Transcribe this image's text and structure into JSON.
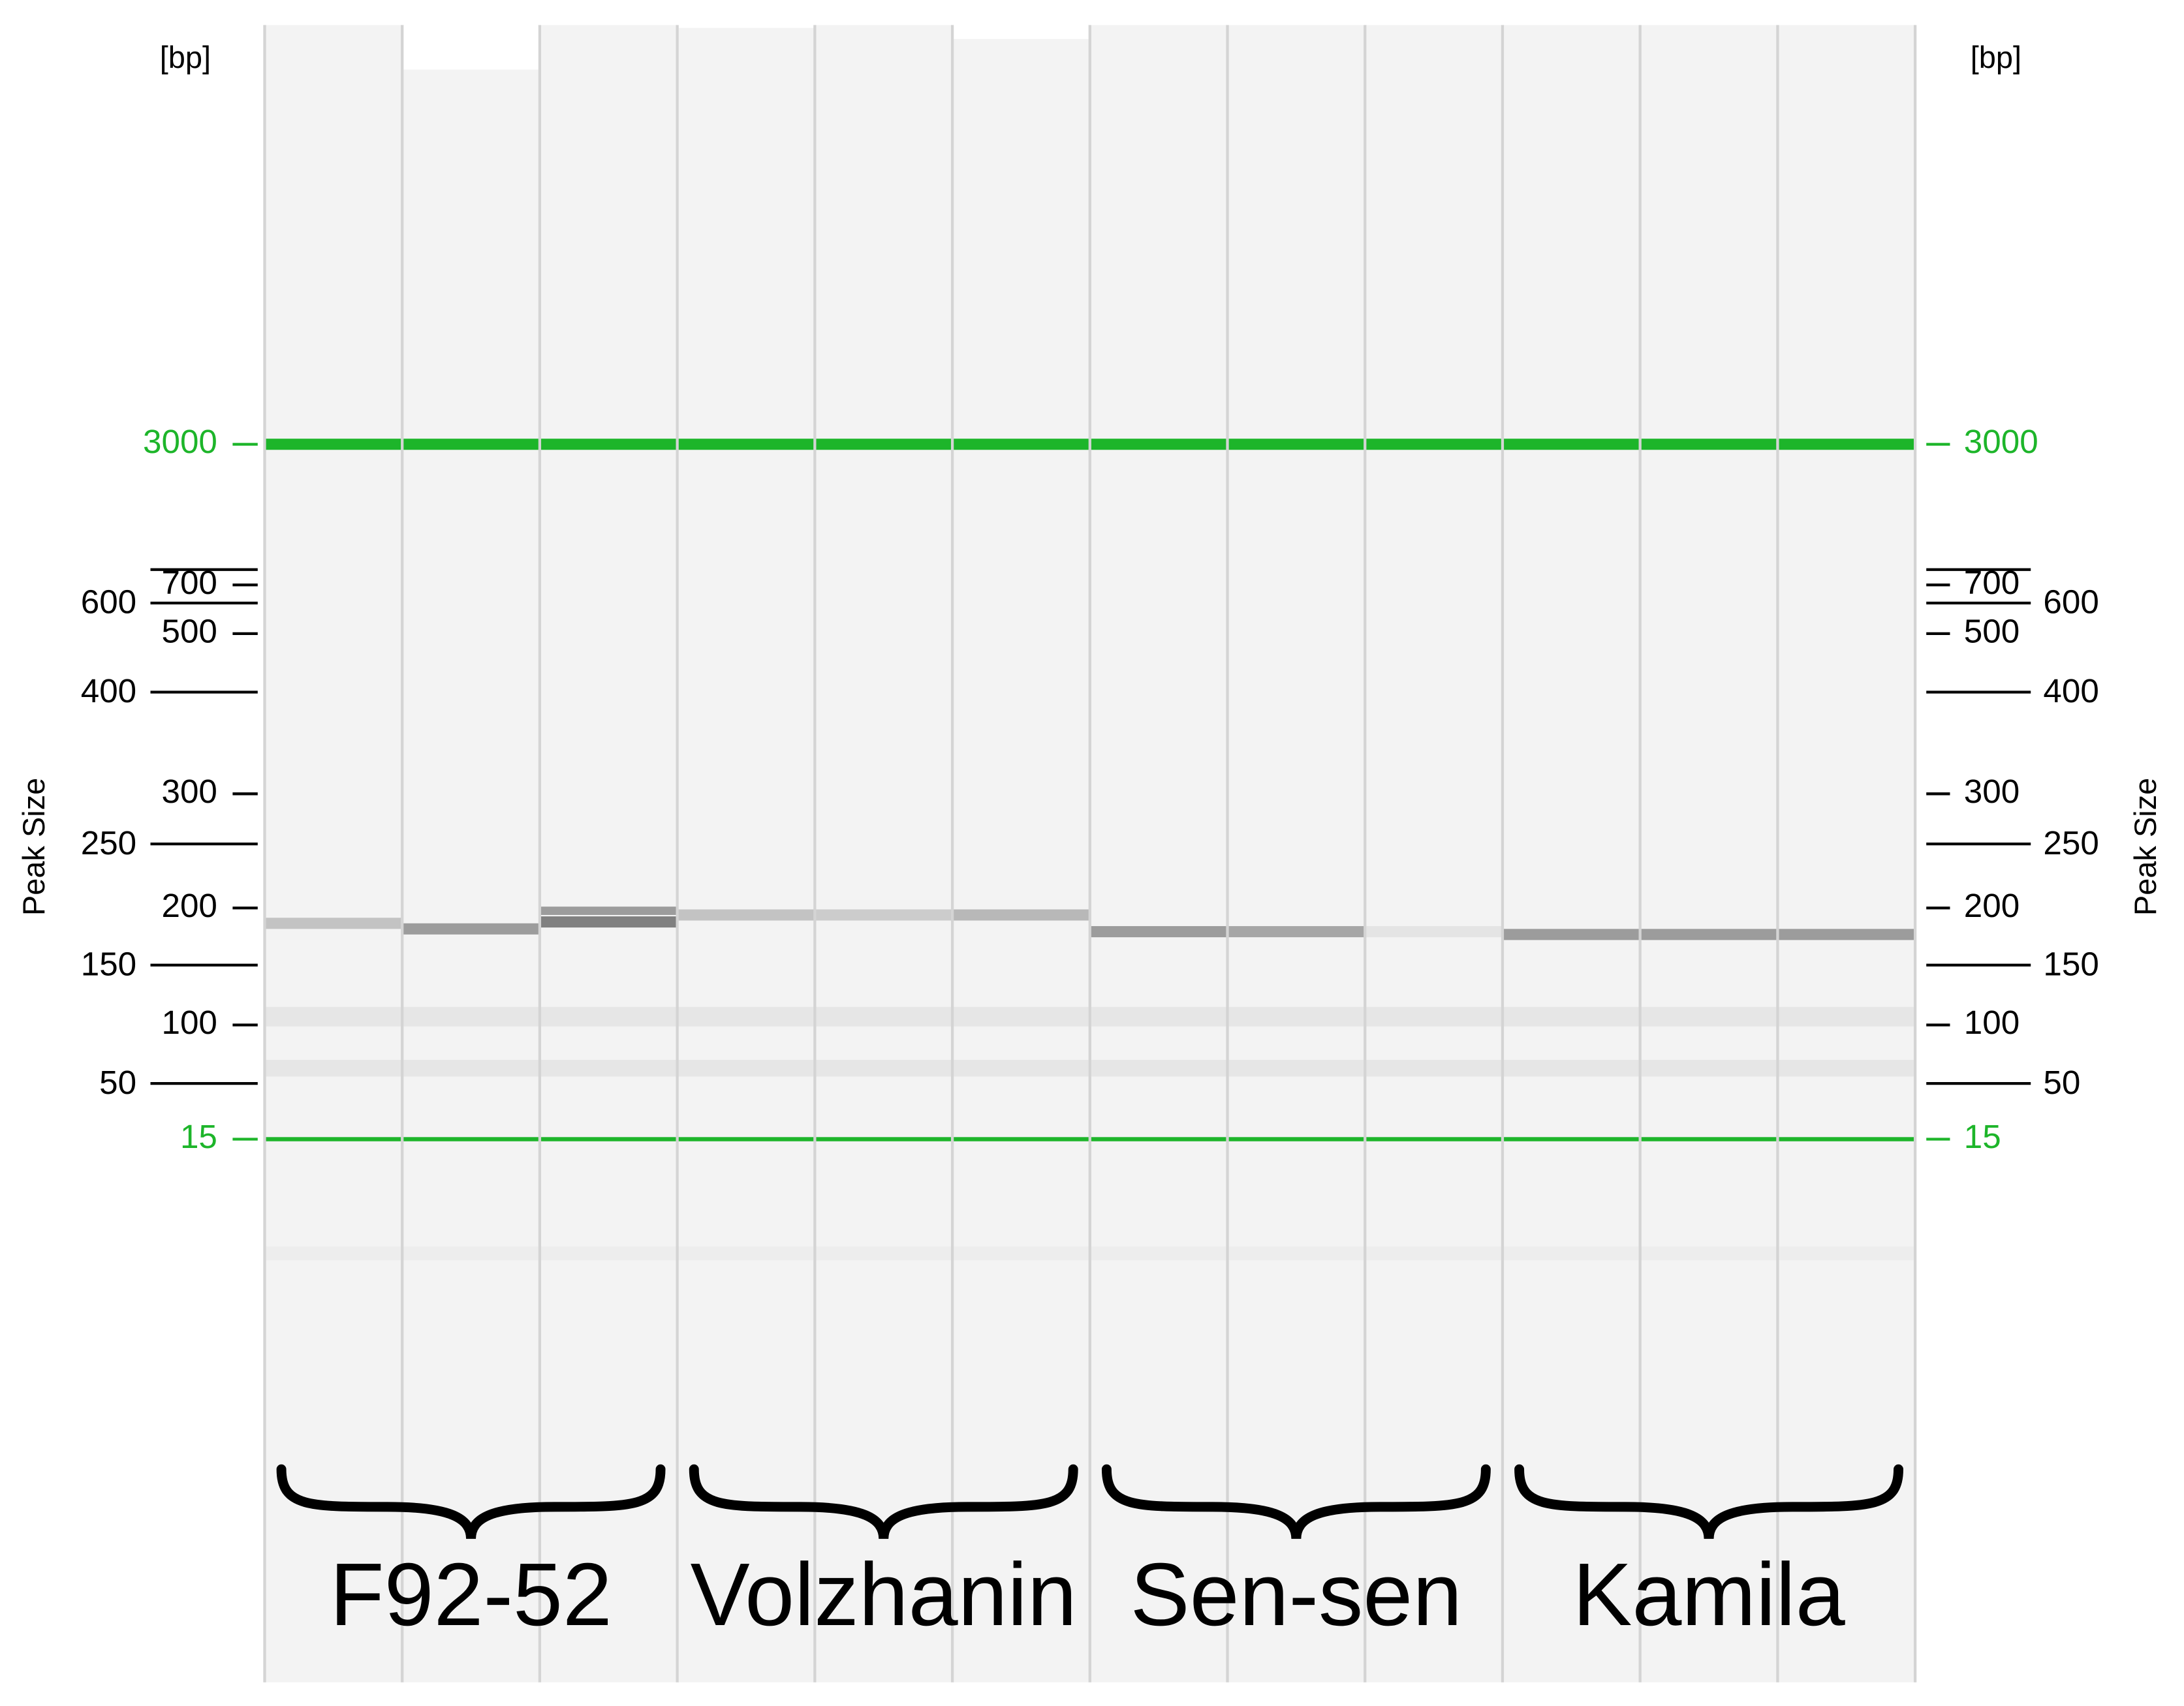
{
  "axis": {
    "unit": "[bp]",
    "title": "Peak Size",
    "ladder": [
      "3000",
      "700",
      "600",
      "500",
      "400",
      "300",
      "250",
      "200",
      "150",
      "100",
      "50",
      "15"
    ]
  },
  "groups": [
    "F92-52",
    "Volzhanin",
    "Sen-sen",
    "Kamila"
  ]
}
